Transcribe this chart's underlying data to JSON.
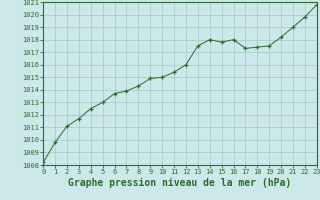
{
  "x": [
    0,
    1,
    2,
    3,
    4,
    5,
    6,
    7,
    8,
    9,
    10,
    11,
    12,
    13,
    14,
    15,
    16,
    17,
    18,
    19,
    20,
    21,
    22,
    23
  ],
  "y": [
    1008.2,
    1009.8,
    1011.1,
    1011.7,
    1012.5,
    1013.0,
    1013.7,
    1013.9,
    1014.3,
    1014.9,
    1015.0,
    1015.4,
    1016.0,
    1017.5,
    1018.0,
    1017.8,
    1018.0,
    1017.3,
    1017.4,
    1017.5,
    1018.2,
    1019.0,
    1019.8,
    1020.8
  ],
  "xlim": [
    0,
    23
  ],
  "ylim": [
    1008,
    1021
  ],
  "xticks": [
    0,
    1,
    2,
    3,
    4,
    5,
    6,
    7,
    8,
    9,
    10,
    11,
    12,
    13,
    14,
    15,
    16,
    17,
    18,
    19,
    20,
    21,
    22,
    23
  ],
  "yticks": [
    1008,
    1009,
    1010,
    1011,
    1012,
    1013,
    1014,
    1015,
    1016,
    1017,
    1018,
    1019,
    1020,
    1021
  ],
  "xlabel": "Graphe pression niveau de la mer (hPa)",
  "line_color": "#2d6a2d",
  "marker": "+",
  "bg_color": "#cce8e8",
  "grid_color": "#9dcaca",
  "tick_label_color": "#2d6a2d",
  "xlabel_color": "#2d6a2d",
  "tick_fontsize": 5.0,
  "xlabel_fontsize": 7.0
}
